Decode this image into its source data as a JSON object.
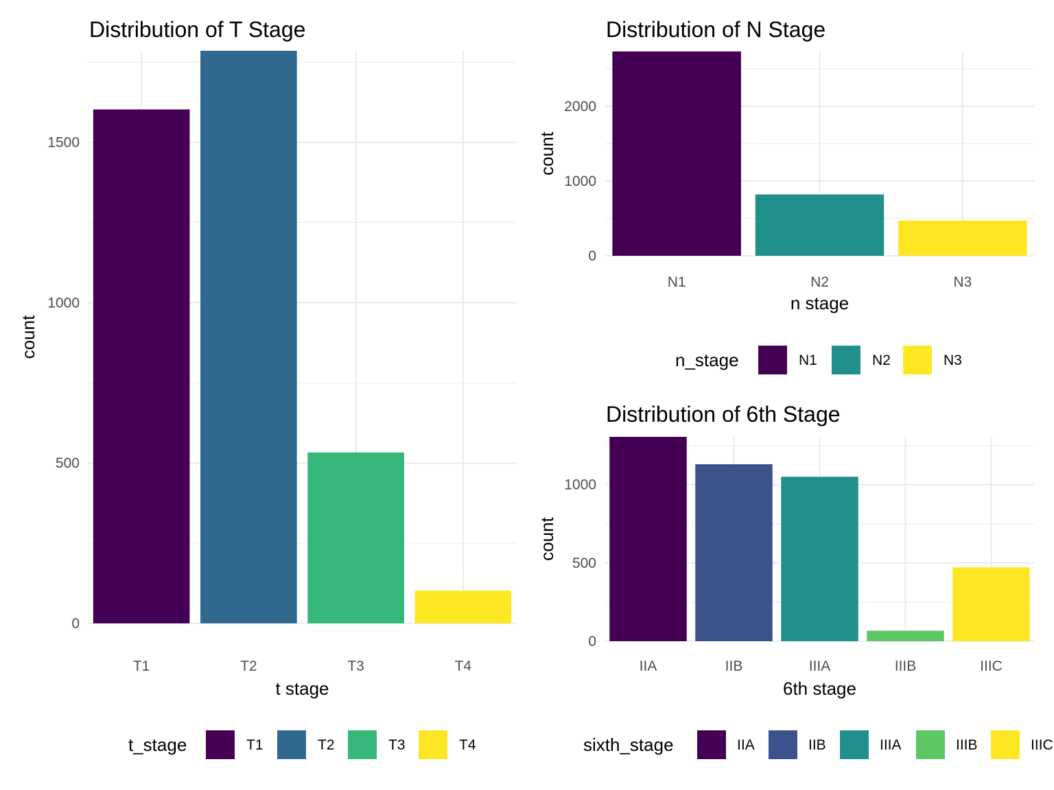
{
  "chart_data": [
    {
      "id": "t_stage",
      "type": "bar",
      "title": "Distribution of T Stage",
      "xlabel": "t stage",
      "ylabel": "count",
      "categories": [
        "T1",
        "T2",
        "T3",
        "T4"
      ],
      "values": [
        1603,
        1786,
        533,
        102
      ],
      "colors": [
        "#440154",
        "#31688E",
        "#35B779",
        "#FDE725"
      ],
      "ylim": [
        0,
        1786
      ],
      "yticks": [
        0,
        500,
        1000,
        1500
      ],
      "ytick_labels": [
        "0",
        "500",
        "1000",
        "1500"
      ],
      "grid": true,
      "legend": {
        "title": "t_stage",
        "position": "bottom",
        "entries": [
          "T1",
          "T2",
          "T3",
          "T4"
        ]
      }
    },
    {
      "id": "n_stage",
      "type": "bar",
      "title": "Distribution of N Stage",
      "xlabel": "n stage",
      "ylabel": "count",
      "categories": [
        "N1",
        "N2",
        "N3"
      ],
      "values": [
        2732,
        820,
        472
      ],
      "colors": [
        "#440154",
        "#21908C",
        "#FDE725"
      ],
      "ylim": [
        0,
        2732
      ],
      "yticks": [
        0,
        1000,
        2000
      ],
      "ytick_labels": [
        "0",
        "1000",
        "2000"
      ],
      "grid": true,
      "legend": {
        "title": "n_stage",
        "position": "bottom",
        "entries": [
          "N1",
          "N2",
          "N3"
        ]
      }
    },
    {
      "id": "sixth_stage",
      "type": "bar",
      "title": "Distribution of 6th Stage",
      "xlabel": "6th stage",
      "ylabel": "count",
      "categories": [
        "IIA",
        "IIB",
        "IIIA",
        "IIIB",
        "IIIC"
      ],
      "values": [
        1305,
        1130,
        1050,
        67,
        472
      ],
      "colors": [
        "#440154",
        "#3B528B",
        "#21908C",
        "#5DC863",
        "#FDE725"
      ],
      "ylim": [
        0,
        1305
      ],
      "yticks": [
        0,
        500,
        1000
      ],
      "ytick_labels": [
        "0",
        "500",
        "1000"
      ],
      "grid": true,
      "legend": {
        "title": "sixth_stage",
        "position": "bottom",
        "entries": [
          "IIA",
          "IIB",
          "IIIA",
          "IIIB",
          "IIIC"
        ]
      }
    }
  ]
}
